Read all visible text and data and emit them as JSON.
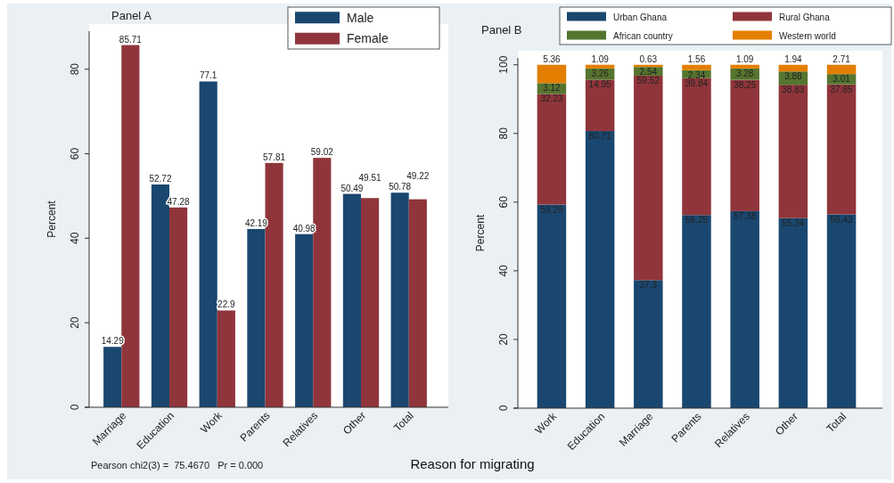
{
  "chart_data": [
    {
      "type": "bar",
      "title": "Panel A",
      "categories": [
        "Marriage",
        "Education",
        "Work",
        "Parents",
        "Relatives",
        "Other",
        "Total"
      ],
      "series": [
        {
          "name": "Male",
          "color": "#1a476f",
          "values": [
            14.29,
            52.72,
            77.1,
            42.19,
            40.98,
            50.49,
            50.78
          ]
        },
        {
          "name": "Female",
          "color": "#90353b",
          "values": [
            85.71,
            47.28,
            22.9,
            57.81,
            59.02,
            49.51,
            49.22
          ]
        }
      ],
      "ylabel": "Percent",
      "ylim": [
        0,
        89
      ],
      "yticks": [
        0,
        20,
        40,
        60,
        80
      ],
      "legend": "top right",
      "data_labels": true,
      "annotations": [
        "Pearson chi2(3) =  75.4670   Pr = 0.000"
      ]
    },
    {
      "type": "bar",
      "title": "Panel B",
      "categories": [
        "Work",
        "Education",
        "Marriage",
        "Parents",
        "Relatives",
        "Other",
        "Total"
      ],
      "stacked": true,
      "series": [
        {
          "name": "Urban Ghana",
          "color": "#1a476f",
          "values": [
            59.29,
            80.71,
            37.3,
            56.25,
            57.38,
            55.34,
            56.43
          ]
        },
        {
          "name": "Rural Ghana",
          "color": "#90353b",
          "values": [
            32.23,
            14.95,
            59.52,
            39.84,
            38.25,
            38.83,
            37.85
          ]
        },
        {
          "name": "African country",
          "color": "#55752f",
          "values": [
            3.12,
            3.26,
            2.54,
            2.34,
            3.28,
            3.88,
            3.01
          ]
        },
        {
          "name": "Western world",
          "color": "#e37e00",
          "values": [
            5.36,
            1.09,
            0.63,
            1.56,
            1.09,
            1.94,
            2.71
          ]
        }
      ],
      "ylabel": "Percent",
      "xlabel": "Reason for migrating",
      "ylim": [
        0,
        102
      ],
      "yticks": [
        0,
        20,
        40,
        60,
        80,
        100
      ],
      "legend": "top",
      "data_labels": true
    }
  ]
}
